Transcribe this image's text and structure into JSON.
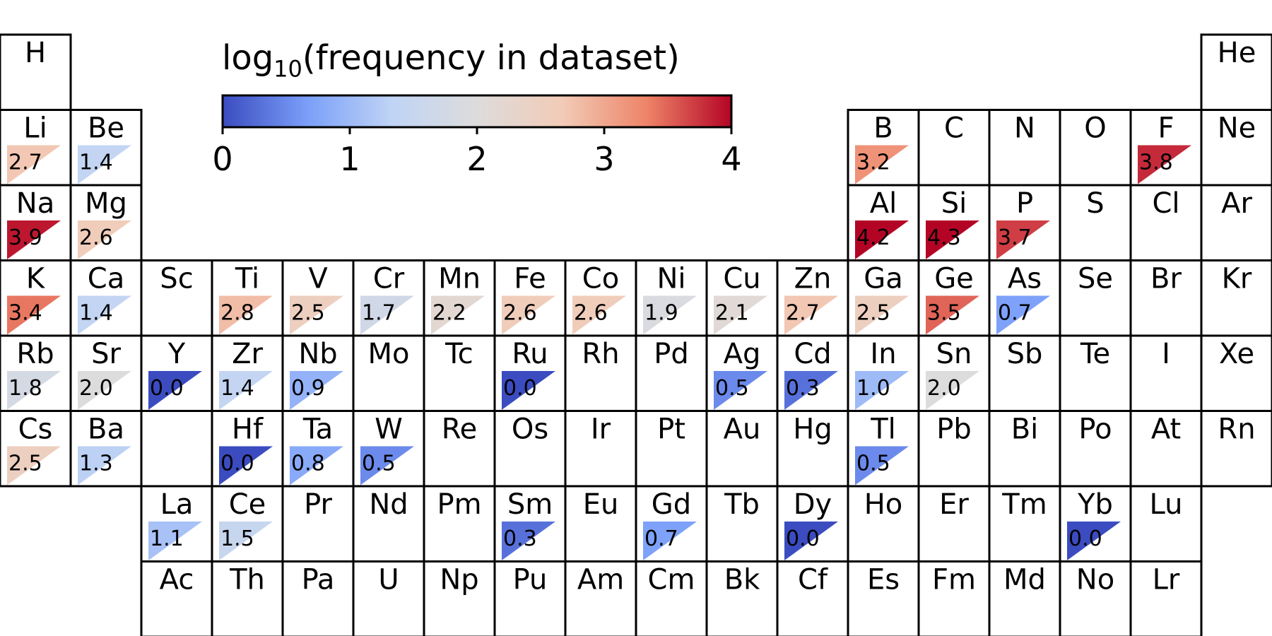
{
  "chart_data": {
    "type": "heatmap",
    "colorbar": {
      "title_main": "log",
      "title_sub": "10",
      "title_rest": "(frequency in dataset)",
      "range": [
        0,
        4
      ],
      "ticks": [
        "0",
        "1",
        "2",
        "3",
        "4"
      ],
      "colormap": [
        "#3b4cc0",
        "#7b9ff9",
        "#c0d4f5",
        "#dddcdc",
        "#f2cbb7",
        "#ee8468",
        "#b40426"
      ]
    },
    "elements": [
      {
        "symbol": "H",
        "row": 1,
        "col": 1,
        "value": null
      },
      {
        "symbol": "He",
        "row": 1,
        "col": 18,
        "value": null
      },
      {
        "symbol": "Li",
        "row": 2,
        "col": 1,
        "value": "2.7"
      },
      {
        "symbol": "Be",
        "row": 2,
        "col": 2,
        "value": "1.4"
      },
      {
        "symbol": "B",
        "row": 2,
        "col": 13,
        "value": "3.2"
      },
      {
        "symbol": "C",
        "row": 2,
        "col": 14,
        "value": null
      },
      {
        "symbol": "N",
        "row": 2,
        "col": 15,
        "value": null
      },
      {
        "symbol": "O",
        "row": 2,
        "col": 16,
        "value": null
      },
      {
        "symbol": "F",
        "row": 2,
        "col": 17,
        "value": "3.8"
      },
      {
        "symbol": "Ne",
        "row": 2,
        "col": 18,
        "value": null
      },
      {
        "symbol": "Na",
        "row": 3,
        "col": 1,
        "value": "3.9"
      },
      {
        "symbol": "Mg",
        "row": 3,
        "col": 2,
        "value": "2.6"
      },
      {
        "symbol": "Al",
        "row": 3,
        "col": 13,
        "value": "4.2"
      },
      {
        "symbol": "Si",
        "row": 3,
        "col": 14,
        "value": "4.3"
      },
      {
        "symbol": "P",
        "row": 3,
        "col": 15,
        "value": "3.7"
      },
      {
        "symbol": "S",
        "row": 3,
        "col": 16,
        "value": null
      },
      {
        "symbol": "Cl",
        "row": 3,
        "col": 17,
        "value": null
      },
      {
        "symbol": "Ar",
        "row": 3,
        "col": 18,
        "value": null
      },
      {
        "symbol": "K",
        "row": 4,
        "col": 1,
        "value": "3.4"
      },
      {
        "symbol": "Ca",
        "row": 4,
        "col": 2,
        "value": "1.4"
      },
      {
        "symbol": "Sc",
        "row": 4,
        "col": 3,
        "value": null
      },
      {
        "symbol": "Ti",
        "row": 4,
        "col": 4,
        "value": "2.8"
      },
      {
        "symbol": "V",
        "row": 4,
        "col": 5,
        "value": "2.5"
      },
      {
        "symbol": "Cr",
        "row": 4,
        "col": 6,
        "value": "1.7"
      },
      {
        "symbol": "Mn",
        "row": 4,
        "col": 7,
        "value": "2.2"
      },
      {
        "symbol": "Fe",
        "row": 4,
        "col": 8,
        "value": "2.6"
      },
      {
        "symbol": "Co",
        "row": 4,
        "col": 9,
        "value": "2.6"
      },
      {
        "symbol": "Ni",
        "row": 4,
        "col": 10,
        "value": "1.9"
      },
      {
        "symbol": "Cu",
        "row": 4,
        "col": 11,
        "value": "2.1"
      },
      {
        "symbol": "Zn",
        "row": 4,
        "col": 12,
        "value": "2.7"
      },
      {
        "symbol": "Ga",
        "row": 4,
        "col": 13,
        "value": "2.5"
      },
      {
        "symbol": "Ge",
        "row": 4,
        "col": 14,
        "value": "3.5"
      },
      {
        "symbol": "As",
        "row": 4,
        "col": 15,
        "value": "0.7"
      },
      {
        "symbol": "Se",
        "row": 4,
        "col": 16,
        "value": null
      },
      {
        "symbol": "Br",
        "row": 4,
        "col": 17,
        "value": null
      },
      {
        "symbol": "Kr",
        "row": 4,
        "col": 18,
        "value": null
      },
      {
        "symbol": "Rb",
        "row": 5,
        "col": 1,
        "value": "1.8"
      },
      {
        "symbol": "Sr",
        "row": 5,
        "col": 2,
        "value": "2.0"
      },
      {
        "symbol": "Y",
        "row": 5,
        "col": 3,
        "value": "0.0"
      },
      {
        "symbol": "Zr",
        "row": 5,
        "col": 4,
        "value": "1.4"
      },
      {
        "symbol": "Nb",
        "row": 5,
        "col": 5,
        "value": "0.9"
      },
      {
        "symbol": "Mo",
        "row": 5,
        "col": 6,
        "value": null
      },
      {
        "symbol": "Tc",
        "row": 5,
        "col": 7,
        "value": null
      },
      {
        "symbol": "Ru",
        "row": 5,
        "col": 8,
        "value": "0.0"
      },
      {
        "symbol": "Rh",
        "row": 5,
        "col": 9,
        "value": null
      },
      {
        "symbol": "Pd",
        "row": 5,
        "col": 10,
        "value": null
      },
      {
        "symbol": "Ag",
        "row": 5,
        "col": 11,
        "value": "0.5"
      },
      {
        "symbol": "Cd",
        "row": 5,
        "col": 12,
        "value": "0.3"
      },
      {
        "symbol": "In",
        "row": 5,
        "col": 13,
        "value": "1.0"
      },
      {
        "symbol": "Sn",
        "row": 5,
        "col": 14,
        "value": "2.0"
      },
      {
        "symbol": "Sb",
        "row": 5,
        "col": 15,
        "value": null
      },
      {
        "symbol": "Te",
        "row": 5,
        "col": 16,
        "value": null
      },
      {
        "symbol": "I",
        "row": 5,
        "col": 17,
        "value": null
      },
      {
        "symbol": "Xe",
        "row": 5,
        "col": 18,
        "value": null
      },
      {
        "symbol": "Cs",
        "row": 6,
        "col": 1,
        "value": "2.5"
      },
      {
        "symbol": "Ba",
        "row": 6,
        "col": 2,
        "value": "1.3"
      },
      {
        "symbol": "",
        "row": 6,
        "col": 3,
        "value": null
      },
      {
        "symbol": "Hf",
        "row": 6,
        "col": 4,
        "value": "0.0"
      },
      {
        "symbol": "Ta",
        "row": 6,
        "col": 5,
        "value": "0.8"
      },
      {
        "symbol": "W",
        "row": 6,
        "col": 6,
        "value": "0.5"
      },
      {
        "symbol": "Re",
        "row": 6,
        "col": 7,
        "value": null
      },
      {
        "symbol": "Os",
        "row": 6,
        "col": 8,
        "value": null
      },
      {
        "symbol": "Ir",
        "row": 6,
        "col": 9,
        "value": null
      },
      {
        "symbol": "Pt",
        "row": 6,
        "col": 10,
        "value": null
      },
      {
        "symbol": "Au",
        "row": 6,
        "col": 11,
        "value": null
      },
      {
        "symbol": "Hg",
        "row": 6,
        "col": 12,
        "value": null
      },
      {
        "symbol": "Tl",
        "row": 6,
        "col": 13,
        "value": "0.5"
      },
      {
        "symbol": "Pb",
        "row": 6,
        "col": 14,
        "value": null
      },
      {
        "symbol": "Bi",
        "row": 6,
        "col": 15,
        "value": null
      },
      {
        "symbol": "Po",
        "row": 6,
        "col": 16,
        "value": null
      },
      {
        "symbol": "At",
        "row": 6,
        "col": 17,
        "value": null
      },
      {
        "symbol": "Rn",
        "row": 6,
        "col": 18,
        "value": null
      },
      {
        "symbol": "La",
        "row": 7,
        "col": 3,
        "value": "1.1"
      },
      {
        "symbol": "Ce",
        "row": 7,
        "col": 4,
        "value": "1.5"
      },
      {
        "symbol": "Pr",
        "row": 7,
        "col": 5,
        "value": null
      },
      {
        "symbol": "Nd",
        "row": 7,
        "col": 6,
        "value": null
      },
      {
        "symbol": "Pm",
        "row": 7,
        "col": 7,
        "value": null
      },
      {
        "symbol": "Sm",
        "row": 7,
        "col": 8,
        "value": "0.3"
      },
      {
        "symbol": "Eu",
        "row": 7,
        "col": 9,
        "value": null
      },
      {
        "symbol": "Gd",
        "row": 7,
        "col": 10,
        "value": "0.7"
      },
      {
        "symbol": "Tb",
        "row": 7,
        "col": 11,
        "value": null
      },
      {
        "symbol": "Dy",
        "row": 7,
        "col": 12,
        "value": "0.0"
      },
      {
        "symbol": "Ho",
        "row": 7,
        "col": 13,
        "value": null
      },
      {
        "symbol": "Er",
        "row": 7,
        "col": 14,
        "value": null
      },
      {
        "symbol": "Tm",
        "row": 7,
        "col": 15,
        "value": null
      },
      {
        "symbol": "Yb",
        "row": 7,
        "col": 16,
        "value": "0.0"
      },
      {
        "symbol": "Lu",
        "row": 7,
        "col": 17,
        "value": null
      },
      {
        "symbol": "Ac",
        "row": 8,
        "col": 3,
        "value": null
      },
      {
        "symbol": "Th",
        "row": 8,
        "col": 4,
        "value": null
      },
      {
        "symbol": "Pa",
        "row": 8,
        "col": 5,
        "value": null
      },
      {
        "symbol": "U",
        "row": 8,
        "col": 6,
        "value": null
      },
      {
        "symbol": "Np",
        "row": 8,
        "col": 7,
        "value": null
      },
      {
        "symbol": "Pu",
        "row": 8,
        "col": 8,
        "value": null
      },
      {
        "symbol": "Am",
        "row": 8,
        "col": 9,
        "value": null
      },
      {
        "symbol": "Cm",
        "row": 8,
        "col": 10,
        "value": null
      },
      {
        "symbol": "Bk",
        "row": 8,
        "col": 11,
        "value": null
      },
      {
        "symbol": "Cf",
        "row": 8,
        "col": 12,
        "value": null
      },
      {
        "symbol": "Es",
        "row": 8,
        "col": 13,
        "value": null
      },
      {
        "symbol": "Fm",
        "row": 8,
        "col": 14,
        "value": null
      },
      {
        "symbol": "Md",
        "row": 8,
        "col": 15,
        "value": null
      },
      {
        "symbol": "No",
        "row": 8,
        "col": 16,
        "value": null
      },
      {
        "symbol": "Lr",
        "row": 8,
        "col": 17,
        "value": null
      }
    ]
  }
}
